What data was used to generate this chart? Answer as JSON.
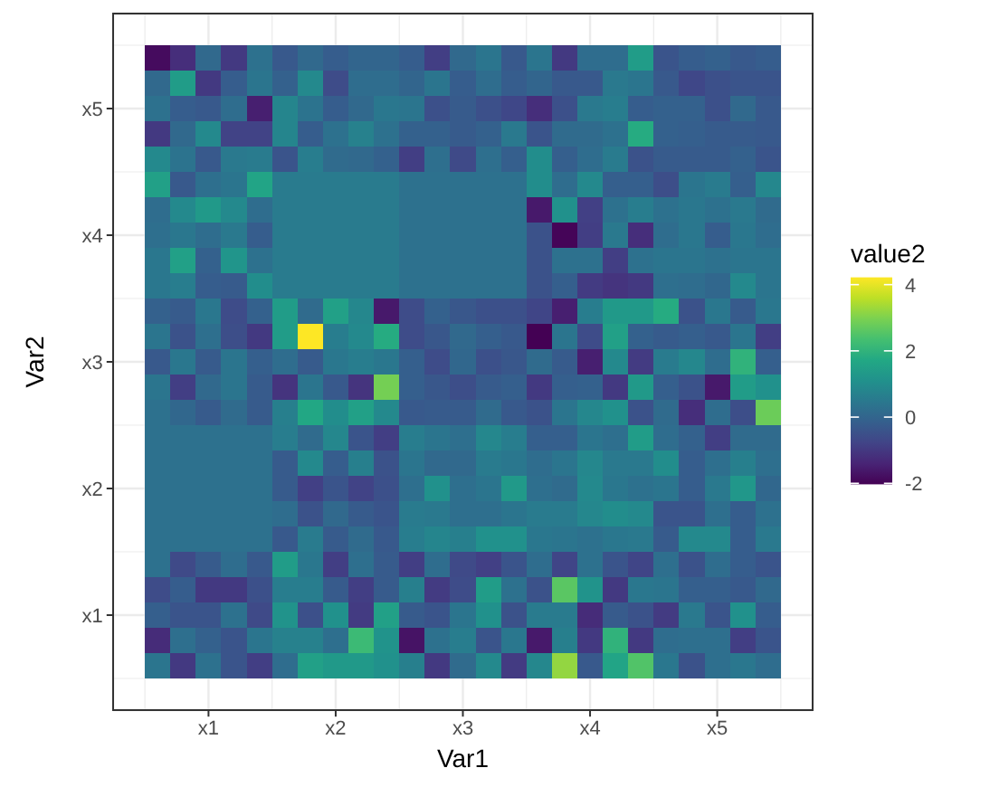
{
  "chart_data": {
    "type": "heatmap",
    "xlabel": "Var1",
    "ylabel": "Var2",
    "clabel": "value2",
    "categories": [
      null,
      null,
      "x1",
      null,
      null,
      null,
      null,
      "x2",
      null,
      null,
      null,
      null,
      "x3",
      null,
      null,
      null,
      null,
      "x4",
      null,
      null,
      null,
      null,
      "x5",
      null,
      null
    ],
    "y_categories": [
      null,
      null,
      "x5",
      null,
      null,
      null,
      null,
      "x4",
      null,
      null,
      null,
      null,
      "x3",
      null,
      null,
      null,
      null,
      "x2",
      null,
      null,
      null,
      null,
      "x1",
      null,
      null
    ],
    "clim": [
      -2.03,
      4.22
    ],
    "cticks": [
      -2,
      0,
      2,
      4
    ],
    "grid": true,
    "cells": [
      [
        -1.85,
        -1.2,
        0.1,
        -1.0,
        0.3,
        -0.3,
        0.1,
        -0.2,
        0.0,
        0.0,
        -0.2,
        -0.9,
        0.1,
        0.4,
        -0.3,
        0.4,
        -1.0,
        0.2,
        0.2,
        1.4,
        -0.4,
        -0.2,
        -0.1,
        -0.3,
        -0.2
      ],
      [
        0.1,
        1.4,
        -1.0,
        -0.2,
        0.4,
        -0.1,
        0.9,
        -0.6,
        0.2,
        0.2,
        0.0,
        0.4,
        -0.2,
        0.2,
        -0.2,
        0.0,
        -0.3,
        -0.3,
        0.5,
        0.4,
        -0.3,
        -0.7,
        -0.5,
        -0.4,
        -0.4
      ],
      [
        0.3,
        -0.2,
        -0.3,
        0.2,
        -1.5,
        0.8,
        0.35,
        -0.2,
        0.1,
        0.45,
        0.4,
        -0.5,
        -0.25,
        -0.5,
        -0.7,
        -1.2,
        -0.5,
        0.5,
        0.6,
        -0.2,
        -0.1,
        -0.1,
        -0.5,
        0.1,
        -0.3
      ],
      [
        -1.0,
        0.1,
        0.9,
        -0.8,
        -0.8,
        0.8,
        -0.2,
        0.3,
        0.7,
        0.3,
        -0.1,
        -0.1,
        -0.25,
        -0.1,
        0.5,
        -0.4,
        0.15,
        0.15,
        0.3,
        1.8,
        -0.1,
        -0.15,
        -0.25,
        -0.25,
        -0.3
      ],
      [
        0.9,
        0.35,
        -0.3,
        0.5,
        0.55,
        -0.4,
        0.6,
        0.15,
        0.1,
        -0.1,
        -0.9,
        0.25,
        -0.65,
        0.25,
        -0.15,
        1.0,
        -0.15,
        0.2,
        0.55,
        -0.45,
        -0.25,
        -0.25,
        -0.25,
        -0.1,
        -0.4
      ],
      [
        1.5,
        -0.3,
        0.25,
        0.4,
        1.6,
        0.55,
        0.55,
        0.55,
        0.55,
        0.55,
        0.3,
        0.3,
        0.3,
        0.3,
        0.3,
        1.0,
        0.2,
        0.9,
        -0.15,
        -0.15,
        -0.55,
        0.4,
        0.55,
        -0.15,
        0.85
      ],
      [
        0.2,
        0.9,
        1.3,
        0.9,
        0.2,
        0.55,
        0.55,
        0.55,
        0.55,
        0.55,
        0.3,
        0.3,
        0.3,
        0.3,
        0.3,
        -1.6,
        1.1,
        -0.85,
        0.3,
        0.6,
        0.3,
        0.45,
        0.3,
        0.5,
        0.15
      ],
      [
        0.25,
        0.45,
        0.2,
        0.5,
        -0.2,
        0.55,
        0.55,
        0.55,
        0.55,
        0.55,
        0.3,
        0.3,
        0.3,
        0.3,
        0.3,
        -0.45,
        -1.95,
        -0.9,
        0.5,
        -1.2,
        0.2,
        0.45,
        -0.2,
        0.45,
        0.2
      ],
      [
        0.45,
        1.5,
        -0.1,
        1.2,
        0.3,
        0.55,
        0.55,
        0.55,
        0.55,
        0.55,
        0.3,
        0.3,
        0.3,
        0.3,
        0.3,
        -0.45,
        0.3,
        0.3,
        -0.9,
        0.3,
        0.4,
        0.4,
        0.3,
        0.4,
        0.4
      ],
      [
        0.45,
        0.6,
        -0.2,
        -0.25,
        1.0,
        0.55,
        0.55,
        0.55,
        0.55,
        0.55,
        0.3,
        0.3,
        0.3,
        0.3,
        0.3,
        -0.45,
        -0.15,
        -0.95,
        -1.1,
        -1.0,
        0.25,
        0.2,
        0.05,
        0.9,
        0.4
      ],
      [
        -0.1,
        -0.25,
        0.45,
        -0.6,
        -0.1,
        1.4,
        0.15,
        1.5,
        0.85,
        -1.6,
        -0.6,
        -0.1,
        -0.35,
        -0.5,
        -0.5,
        -0.75,
        -1.5,
        0.6,
        1.3,
        1.3,
        1.8,
        -0.45,
        0.45,
        -0.25,
        0.45
      ],
      [
        0.4,
        -0.45,
        0.25,
        -0.55,
        -1.0,
        1.4,
        4.22,
        0.6,
        0.9,
        1.8,
        -0.6,
        -0.35,
        0.1,
        -0.15,
        -0.3,
        -2.03,
        0.4,
        -0.6,
        1.5,
        -0.1,
        -0.25,
        -0.15,
        -0.3,
        0.4,
        -0.9
      ],
      [
        -0.3,
        0.45,
        -0.25,
        0.4,
        -0.15,
        0.2,
        -0.25,
        0.45,
        0.6,
        0.45,
        -0.15,
        -0.6,
        0.05,
        -0.5,
        -0.35,
        0.15,
        -0.25,
        -1.5,
        0.9,
        -0.95,
        0.55,
        0.85,
        0.2,
        2.0,
        -0.15
      ],
      [
        0.4,
        -0.9,
        0.1,
        0.4,
        -0.25,
        -1.1,
        0.4,
        -0.3,
        -1.1,
        2.9,
        -0.15,
        -0.35,
        -0.55,
        -0.25,
        -0.15,
        -1.0,
        -0.15,
        -0.1,
        -1.0,
        1.3,
        -0.15,
        -0.45,
        -1.6,
        1.4,
        1.1
      ],
      [
        0.3,
        0.05,
        -0.25,
        0.15,
        -0.25,
        0.65,
        1.7,
        1.0,
        1.5,
        0.9,
        -0.3,
        -0.25,
        -0.25,
        0.15,
        -0.3,
        -0.45,
        0.4,
        0.85,
        1.1,
        -0.45,
        0.15,
        -1.2,
        0.2,
        -0.55,
        2.8
      ],
      [
        0.3,
        0.3,
        0.3,
        0.3,
        0.3,
        0.6,
        0.15,
        0.85,
        -0.4,
        -0.9,
        0.6,
        0.4,
        0.25,
        0.85,
        0.6,
        -0.15,
        -0.15,
        0.4,
        0.25,
        1.4,
        0.2,
        -0.1,
        -0.9,
        0.15,
        0.15
      ],
      [
        0.3,
        0.3,
        0.3,
        0.3,
        0.3,
        -0.25,
        0.9,
        -0.2,
        0.65,
        -0.45,
        0.4,
        0.1,
        0.1,
        0.55,
        0.45,
        0.2,
        0.4,
        0.85,
        0.5,
        0.5,
        1.0,
        -0.2,
        0.25,
        0.65,
        0.25
      ],
      [
        0.3,
        0.3,
        0.3,
        0.3,
        0.3,
        -0.25,
        -0.85,
        -0.4,
        -0.8,
        -0.5,
        0.25,
        1.1,
        0.25,
        0.4,
        1.3,
        0.25,
        0.15,
        0.9,
        0.45,
        0.3,
        0.4,
        -0.2,
        0.5,
        1.25,
        0.05
      ],
      [
        0.3,
        0.3,
        0.3,
        0.3,
        0.3,
        0.2,
        -0.45,
        0.1,
        -0.25,
        -0.4,
        0.55,
        0.5,
        0.25,
        0.25,
        0.4,
        0.55,
        0.55,
        0.85,
        1.0,
        0.9,
        -0.4,
        -0.4,
        0.25,
        -0.2,
        0.3
      ],
      [
        0.3,
        0.3,
        0.3,
        0.3,
        0.3,
        -0.3,
        0.55,
        -0.25,
        0.15,
        -0.3,
        0.6,
        0.8,
        0.65,
        1.1,
        1.1,
        0.45,
        0.4,
        0.3,
        0.45,
        0.5,
        -0.25,
        0.9,
        0.9,
        -0.2,
        0.5
      ],
      [
        0.3,
        -0.65,
        -0.25,
        0.2,
        -0.3,
        1.4,
        0.45,
        -0.9,
        0.25,
        -0.25,
        -0.9,
        0.2,
        -0.65,
        -0.85,
        -0.4,
        0.2,
        -0.75,
        0.3,
        -0.4,
        -0.75,
        0.25,
        -0.45,
        0.2,
        -0.2,
        -0.4
      ],
      [
        -0.6,
        -0.2,
        -1.0,
        -1.0,
        -0.5,
        0.6,
        0.6,
        -0.25,
        -0.9,
        -0.25,
        0.65,
        -0.95,
        -0.6,
        1.4,
        0.3,
        -0.45,
        2.6,
        1.15,
        -1.0,
        0.45,
        0.4,
        -0.15,
        -0.15,
        -0.3,
        0.1
      ],
      [
        -0.15,
        -0.4,
        -0.4,
        0.3,
        -0.65,
        1.15,
        -0.5,
        1.1,
        -0.95,
        1.5,
        -0.25,
        -0.4,
        0.4,
        1.1,
        -0.45,
        0.55,
        0.55,
        -1.25,
        -0.25,
        -0.45,
        -0.95,
        0.5,
        -0.4,
        1.1,
        -0.2
      ],
      [
        -1.25,
        0.25,
        -0.1,
        -0.4,
        0.4,
        0.7,
        0.7,
        0.25,
        2.2,
        1.15,
        -1.7,
        0.3,
        0.6,
        -0.4,
        0.45,
        -1.6,
        0.65,
        -1.0,
        2.0,
        -1.0,
        0.2,
        0.25,
        0.25,
        -0.9,
        -0.4
      ],
      [
        0.4,
        -1.0,
        0.3,
        -0.4,
        -0.9,
        0.2,
        1.5,
        1.3,
        1.3,
        1.1,
        0.65,
        -1.0,
        0.15,
        0.9,
        -0.95,
        0.85,
        3.2,
        -0.3,
        1.6,
        2.5,
        0.45,
        -0.45,
        0.25,
        0.45,
        0.2
      ]
    ]
  }
}
